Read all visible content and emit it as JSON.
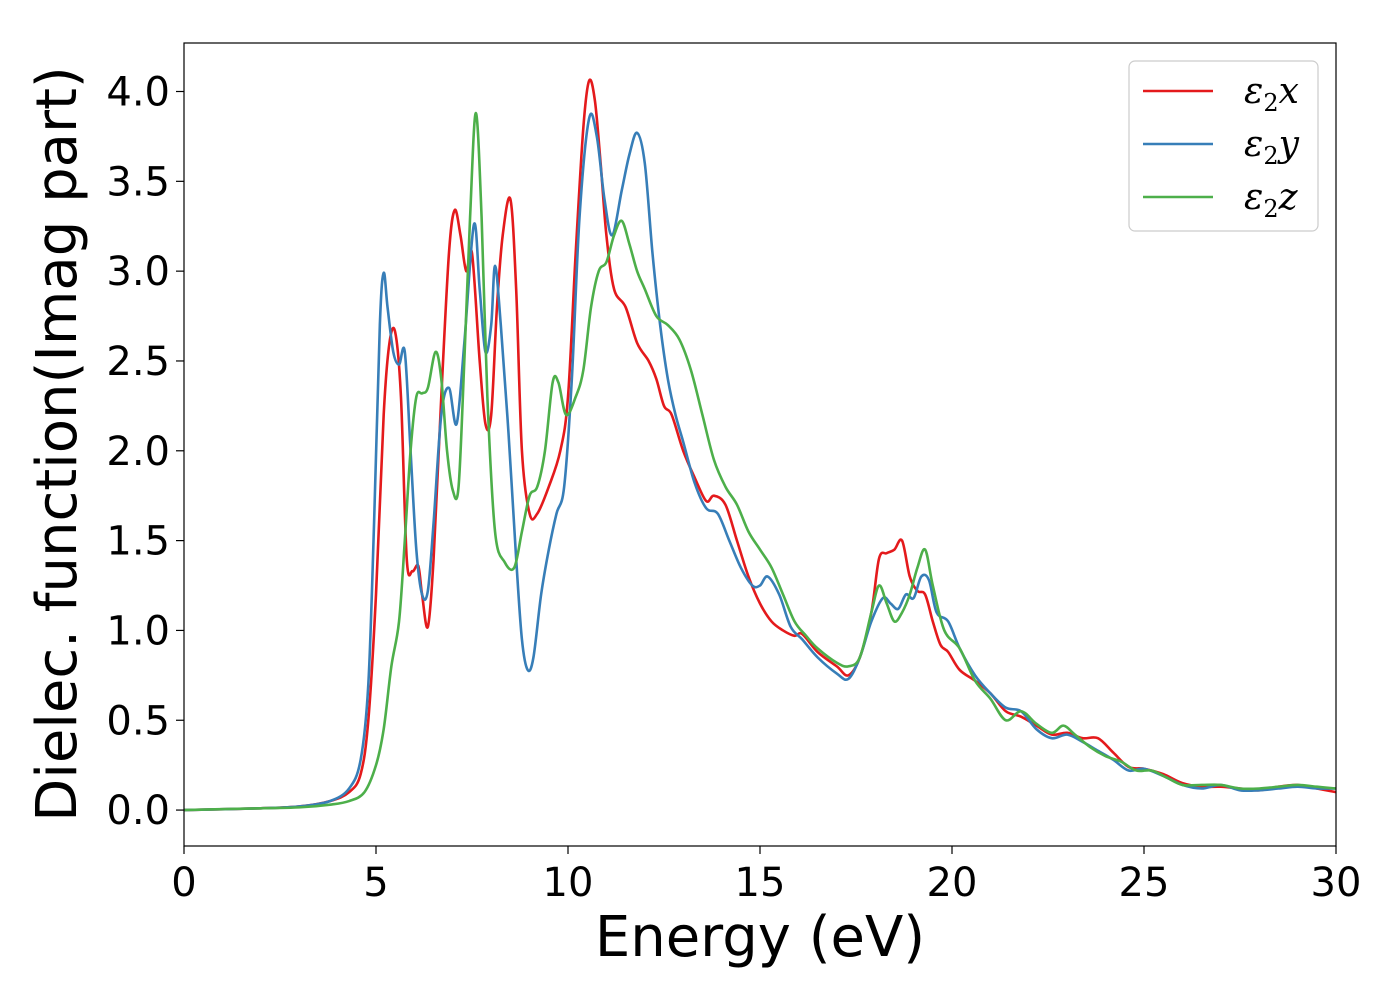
{
  "chart_data": {
    "type": "line",
    "xlabel": "Energy (eV)",
    "ylabel": "Dielec. function(Imag part)",
    "xlim": [
      0,
      30
    ],
    "ylim": [
      -0.2,
      4.27
    ],
    "xticks": [
      0,
      5,
      10,
      15,
      20,
      25,
      30
    ],
    "yticks": [
      0.0,
      0.5,
      1.0,
      1.5,
      2.0,
      2.5,
      3.0,
      3.5,
      4.0
    ],
    "grid": false,
    "legend_position": "top-right",
    "series": [
      {
        "name": "ε2x",
        "name_base": "ε",
        "name_sub": "2",
        "name_tail": "x",
        "color": "#e41a1c",
        "points": [
          [
            0,
            0.0
          ],
          [
            2,
            0.01
          ],
          [
            3,
            0.02
          ],
          [
            3.8,
            0.05
          ],
          [
            4.3,
            0.1
          ],
          [
            4.6,
            0.2
          ],
          [
            4.8,
            0.5
          ],
          [
            5.0,
            1.2
          ],
          [
            5.2,
            2.2
          ],
          [
            5.35,
            2.6
          ],
          [
            5.5,
            2.66
          ],
          [
            5.65,
            2.3
          ],
          [
            5.8,
            1.4
          ],
          [
            5.95,
            1.33
          ],
          [
            6.1,
            1.36
          ],
          [
            6.2,
            1.2
          ],
          [
            6.35,
            1.02
          ],
          [
            6.5,
            1.4
          ],
          [
            6.7,
            2.3
          ],
          [
            6.9,
            3.1
          ],
          [
            7.05,
            3.34
          ],
          [
            7.2,
            3.2
          ],
          [
            7.35,
            3.0
          ],
          [
            7.5,
            3.1
          ],
          [
            7.7,
            2.5
          ],
          [
            7.85,
            2.15
          ],
          [
            8.0,
            2.2
          ],
          [
            8.15,
            2.8
          ],
          [
            8.3,
            3.2
          ],
          [
            8.5,
            3.4
          ],
          [
            8.65,
            2.9
          ],
          [
            8.8,
            2.0
          ],
          [
            9.0,
            1.65
          ],
          [
            9.2,
            1.65
          ],
          [
            9.5,
            1.8
          ],
          [
            9.8,
            2.0
          ],
          [
            10.0,
            2.3
          ],
          [
            10.2,
            3.1
          ],
          [
            10.4,
            3.8
          ],
          [
            10.55,
            4.06
          ],
          [
            10.7,
            3.95
          ],
          [
            10.85,
            3.6
          ],
          [
            11.0,
            3.2
          ],
          [
            11.2,
            2.9
          ],
          [
            11.5,
            2.8
          ],
          [
            11.8,
            2.6
          ],
          [
            12.1,
            2.5
          ],
          [
            12.3,
            2.4
          ],
          [
            12.5,
            2.25
          ],
          [
            12.7,
            2.2
          ],
          [
            13.0,
            2.0
          ],
          [
            13.3,
            1.85
          ],
          [
            13.6,
            1.72
          ],
          [
            13.8,
            1.75
          ],
          [
            14.1,
            1.7
          ],
          [
            14.4,
            1.5
          ],
          [
            14.7,
            1.3
          ],
          [
            15.0,
            1.15
          ],
          [
            15.3,
            1.05
          ],
          [
            15.6,
            1.0
          ],
          [
            15.9,
            0.97
          ],
          [
            16.1,
            0.98
          ],
          [
            16.5,
            0.88
          ],
          [
            17.0,
            0.8
          ],
          [
            17.3,
            0.75
          ],
          [
            17.6,
            0.85
          ],
          [
            17.9,
            1.1
          ],
          [
            18.1,
            1.4
          ],
          [
            18.3,
            1.43
          ],
          [
            18.5,
            1.45
          ],
          [
            18.7,
            1.5
          ],
          [
            18.9,
            1.3
          ],
          [
            19.1,
            1.22
          ],
          [
            19.3,
            1.2
          ],
          [
            19.5,
            1.05
          ],
          [
            19.7,
            0.92
          ],
          [
            19.9,
            0.88
          ],
          [
            20.2,
            0.78
          ],
          [
            20.6,
            0.72
          ],
          [
            21.0,
            0.65
          ],
          [
            21.4,
            0.55
          ],
          [
            21.8,
            0.52
          ],
          [
            22.2,
            0.47
          ],
          [
            22.6,
            0.42
          ],
          [
            23.0,
            0.43
          ],
          [
            23.4,
            0.4
          ],
          [
            23.8,
            0.4
          ],
          [
            24.2,
            0.32
          ],
          [
            24.6,
            0.24
          ],
          [
            25.0,
            0.23
          ],
          [
            25.5,
            0.2
          ],
          [
            26.0,
            0.15
          ],
          [
            26.5,
            0.13
          ],
          [
            27.0,
            0.13
          ],
          [
            27.5,
            0.12
          ],
          [
            28.0,
            0.11
          ],
          [
            28.5,
            0.13
          ],
          [
            29.0,
            0.14
          ],
          [
            29.5,
            0.12
          ],
          [
            30.0,
            0.1
          ]
        ]
      },
      {
        "name": "ε2y",
        "name_base": "ε",
        "name_sub": "2",
        "name_tail": "y",
        "color": "#377eb8",
        "points": [
          [
            0,
            0.0
          ],
          [
            2,
            0.01
          ],
          [
            3,
            0.02
          ],
          [
            3.8,
            0.05
          ],
          [
            4.3,
            0.12
          ],
          [
            4.6,
            0.28
          ],
          [
            4.8,
            0.7
          ],
          [
            4.95,
            1.6
          ],
          [
            5.1,
            2.7
          ],
          [
            5.2,
            2.99
          ],
          [
            5.3,
            2.8
          ],
          [
            5.45,
            2.55
          ],
          [
            5.6,
            2.48
          ],
          [
            5.75,
            2.55
          ],
          [
            5.9,
            2.0
          ],
          [
            6.05,
            1.45
          ],
          [
            6.2,
            1.2
          ],
          [
            6.35,
            1.22
          ],
          [
            6.5,
            1.6
          ],
          [
            6.7,
            2.2
          ],
          [
            6.9,
            2.35
          ],
          [
            7.1,
            2.15
          ],
          [
            7.3,
            2.6
          ],
          [
            7.55,
            3.26
          ],
          [
            7.7,
            2.9
          ],
          [
            7.85,
            2.55
          ],
          [
            8.0,
            2.7
          ],
          [
            8.1,
            3.03
          ],
          [
            8.25,
            2.7
          ],
          [
            8.45,
            2.1
          ],
          [
            8.65,
            1.4
          ],
          [
            8.8,
            0.95
          ],
          [
            8.95,
            0.78
          ],
          [
            9.1,
            0.85
          ],
          [
            9.3,
            1.2
          ],
          [
            9.5,
            1.45
          ],
          [
            9.7,
            1.65
          ],
          [
            9.9,
            1.8
          ],
          [
            10.1,
            2.4
          ],
          [
            10.3,
            3.3
          ],
          [
            10.55,
            3.85
          ],
          [
            10.75,
            3.75
          ],
          [
            10.95,
            3.4
          ],
          [
            11.15,
            3.2
          ],
          [
            11.4,
            3.45
          ],
          [
            11.6,
            3.65
          ],
          [
            11.8,
            3.77
          ],
          [
            12.0,
            3.6
          ],
          [
            12.2,
            3.1
          ],
          [
            12.4,
            2.7
          ],
          [
            12.6,
            2.4
          ],
          [
            12.8,
            2.2
          ],
          [
            13.0,
            2.05
          ],
          [
            13.3,
            1.82
          ],
          [
            13.6,
            1.68
          ],
          [
            13.9,
            1.65
          ],
          [
            14.2,
            1.5
          ],
          [
            14.5,
            1.35
          ],
          [
            14.8,
            1.25
          ],
          [
            15.0,
            1.25
          ],
          [
            15.2,
            1.3
          ],
          [
            15.5,
            1.2
          ],
          [
            15.8,
            1.02
          ],
          [
            16.1,
            0.95
          ],
          [
            16.5,
            0.85
          ],
          [
            17.0,
            0.76
          ],
          [
            17.3,
            0.73
          ],
          [
            17.6,
            0.85
          ],
          [
            17.9,
            1.05
          ],
          [
            18.2,
            1.18
          ],
          [
            18.4,
            1.15
          ],
          [
            18.6,
            1.12
          ],
          [
            18.8,
            1.2
          ],
          [
            19.0,
            1.18
          ],
          [
            19.2,
            1.3
          ],
          [
            19.4,
            1.28
          ],
          [
            19.6,
            1.1
          ],
          [
            19.9,
            1.05
          ],
          [
            20.2,
            0.9
          ],
          [
            20.6,
            0.75
          ],
          [
            21.0,
            0.65
          ],
          [
            21.4,
            0.57
          ],
          [
            21.8,
            0.55
          ],
          [
            22.2,
            0.45
          ],
          [
            22.6,
            0.4
          ],
          [
            23.0,
            0.42
          ],
          [
            23.4,
            0.38
          ],
          [
            23.8,
            0.33
          ],
          [
            24.2,
            0.28
          ],
          [
            24.6,
            0.22
          ],
          [
            25.0,
            0.23
          ],
          [
            25.5,
            0.19
          ],
          [
            26.0,
            0.14
          ],
          [
            26.5,
            0.12
          ],
          [
            27.0,
            0.14
          ],
          [
            27.5,
            0.11
          ],
          [
            28.0,
            0.11
          ],
          [
            28.5,
            0.12
          ],
          [
            29.0,
            0.13
          ],
          [
            29.5,
            0.12
          ],
          [
            30.0,
            0.12
          ]
        ]
      },
      {
        "name": "ε2z",
        "name_base": "ε",
        "name_sub": "2",
        "name_tail": "z",
        "color": "#4daf4a",
        "points": [
          [
            0,
            0.0
          ],
          [
            2,
            0.01
          ],
          [
            3,
            0.015
          ],
          [
            3.8,
            0.03
          ],
          [
            4.3,
            0.05
          ],
          [
            4.7,
            0.1
          ],
          [
            5.0,
            0.25
          ],
          [
            5.2,
            0.45
          ],
          [
            5.4,
            0.8
          ],
          [
            5.6,
            1.05
          ],
          [
            5.75,
            1.5
          ],
          [
            5.9,
            2.0
          ],
          [
            6.05,
            2.3
          ],
          [
            6.2,
            2.32
          ],
          [
            6.35,
            2.35
          ],
          [
            6.55,
            2.55
          ],
          [
            6.7,
            2.4
          ],
          [
            6.85,
            2.0
          ],
          [
            7.0,
            1.78
          ],
          [
            7.15,
            1.8
          ],
          [
            7.3,
            2.5
          ],
          [
            7.45,
            3.3
          ],
          [
            7.6,
            3.88
          ],
          [
            7.75,
            3.3
          ],
          [
            7.9,
            2.3
          ],
          [
            8.1,
            1.55
          ],
          [
            8.35,
            1.38
          ],
          [
            8.6,
            1.35
          ],
          [
            8.8,
            1.55
          ],
          [
            9.0,
            1.75
          ],
          [
            9.2,
            1.8
          ],
          [
            9.4,
            2.0
          ],
          [
            9.6,
            2.38
          ],
          [
            9.75,
            2.38
          ],
          [
            9.95,
            2.2
          ],
          [
            10.2,
            2.3
          ],
          [
            10.4,
            2.45
          ],
          [
            10.6,
            2.8
          ],
          [
            10.8,
            3.0
          ],
          [
            11.0,
            3.05
          ],
          [
            11.2,
            3.2
          ],
          [
            11.4,
            3.28
          ],
          [
            11.6,
            3.15
          ],
          [
            11.8,
            3.0
          ],
          [
            12.0,
            2.9
          ],
          [
            12.3,
            2.75
          ],
          [
            12.6,
            2.7
          ],
          [
            12.9,
            2.62
          ],
          [
            13.2,
            2.45
          ],
          [
            13.5,
            2.2
          ],
          [
            13.8,
            1.95
          ],
          [
            14.1,
            1.8
          ],
          [
            14.4,
            1.7
          ],
          [
            14.7,
            1.55
          ],
          [
            15.0,
            1.45
          ],
          [
            15.3,
            1.35
          ],
          [
            15.6,
            1.2
          ],
          [
            15.9,
            1.05
          ],
          [
            16.2,
            0.97
          ],
          [
            16.5,
            0.9
          ],
          [
            17.0,
            0.82
          ],
          [
            17.3,
            0.8
          ],
          [
            17.6,
            0.85
          ],
          [
            17.9,
            1.1
          ],
          [
            18.1,
            1.25
          ],
          [
            18.3,
            1.15
          ],
          [
            18.5,
            1.05
          ],
          [
            18.7,
            1.1
          ],
          [
            18.9,
            1.2
          ],
          [
            19.1,
            1.35
          ],
          [
            19.3,
            1.45
          ],
          [
            19.5,
            1.25
          ],
          [
            19.8,
            1.0
          ],
          [
            20.2,
            0.9
          ],
          [
            20.6,
            0.72
          ],
          [
            21.0,
            0.62
          ],
          [
            21.4,
            0.5
          ],
          [
            21.8,
            0.55
          ],
          [
            22.2,
            0.48
          ],
          [
            22.6,
            0.43
          ],
          [
            22.9,
            0.47
          ],
          [
            23.2,
            0.42
          ],
          [
            23.6,
            0.35
          ],
          [
            24.0,
            0.3
          ],
          [
            24.4,
            0.27
          ],
          [
            24.8,
            0.22
          ],
          [
            25.2,
            0.22
          ],
          [
            25.6,
            0.18
          ],
          [
            26.0,
            0.14
          ],
          [
            26.5,
            0.14
          ],
          [
            27.0,
            0.14
          ],
          [
            27.5,
            0.12
          ],
          [
            28.0,
            0.12
          ],
          [
            28.5,
            0.13
          ],
          [
            29.0,
            0.14
          ],
          [
            29.5,
            0.13
          ],
          [
            30.0,
            0.12
          ]
        ]
      }
    ]
  }
}
